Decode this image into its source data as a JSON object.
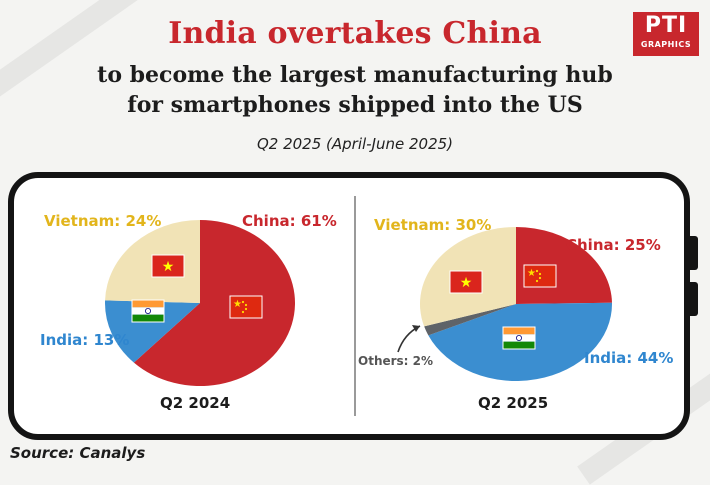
{
  "header": {
    "title": "India overtakes China",
    "subtitle_line1": "to become the largest manufacturing hub",
    "subtitle_line2": "for smartphones shipped into the US",
    "period": "Q2 2025 (April-June 2025)"
  },
  "logo": {
    "main": "PTI",
    "sub": "GRAPHICS",
    "color": "#c8272d"
  },
  "source": "Source: Canalys",
  "colors": {
    "China": "#c8272d",
    "India": "#3b8ed0",
    "Vietnam": "#f1e3b6",
    "Others": "#5f6368",
    "vietnam_label": "#e2b51c",
    "china_label": "#c8272d",
    "india_label": "#2f86cf",
    "others_label": "#555555"
  },
  "chart_data": [
    {
      "type": "pie",
      "title": "Q2 2024",
      "slices": [
        {
          "name": "China",
          "value": 61,
          "label": "China: 61%"
        },
        {
          "name": "India",
          "value": 13,
          "label": "India: 13%"
        },
        {
          "name": "Vietnam",
          "value": 24,
          "label": "Vietnam: 24%"
        }
      ]
    },
    {
      "type": "pie",
      "title": "Q2 2025",
      "slices": [
        {
          "name": "China",
          "value": 25,
          "label": "China: 25%"
        },
        {
          "name": "India",
          "value": 44,
          "label": "India: 44%"
        },
        {
          "name": "Others",
          "value": 2,
          "label": "Others: 2%"
        },
        {
          "name": "Vietnam",
          "value": 30,
          "label": "Vietnam: 30%"
        }
      ]
    }
  ]
}
